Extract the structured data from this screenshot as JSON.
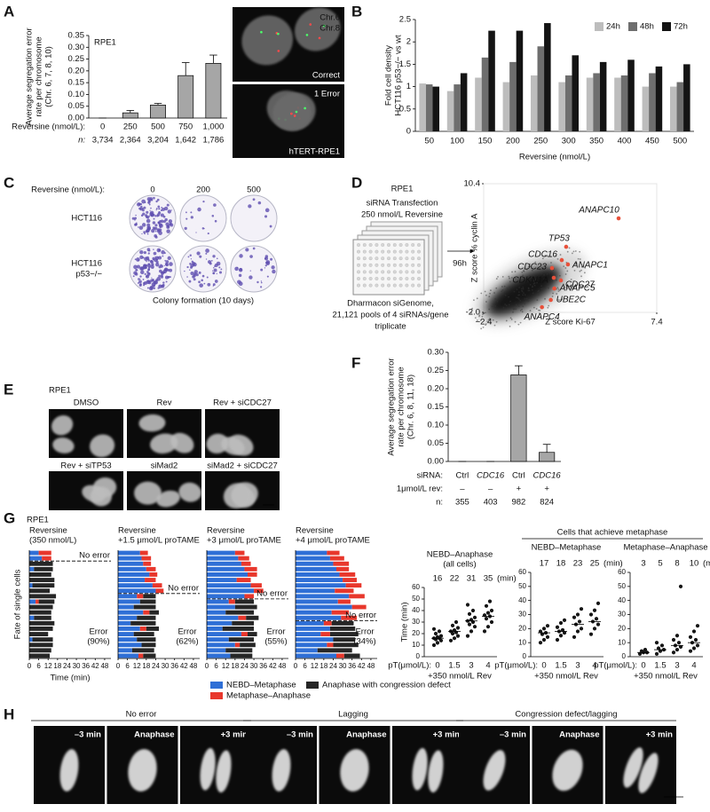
{
  "figure": {
    "panel_labels": [
      "A",
      "B",
      "C",
      "D",
      "E",
      "F",
      "G",
      "H"
    ],
    "fish": {
      "probes": [
        "Chr.6",
        "Chr.8"
      ],
      "correct": "Correct",
      "error": "1 Error",
      "cell_line": "hTERT-RPE1"
    },
    "colony": {
      "x_label": "Reversine (nmol/L):",
      "doses": [
        "0",
        "200",
        "500"
      ],
      "lines": [
        [
          "HCT116"
        ],
        [
          "HCT116",
          "p53−/−"
        ]
      ],
      "caption": "Colony formation (10 days)"
    },
    "screen": {
      "cell_line": "RPE1",
      "treatment": [
        "siRNA Transfection",
        "250 nmol/L Reversine"
      ],
      "time": "96h",
      "library": [
        "Dharmacon siGenome,",
        "21,121 pools of 4 siRNAs/gene",
        "triplicate"
      ]
    },
    "imaging": {
      "cell_line": "RPE1",
      "captions": [
        "DMSO",
        "Rev",
        "Rev + siCDC27",
        "Rev + siTP53",
        "siMad2",
        "siMad2 + siCDC27"
      ]
    },
    "live": {
      "cell_line": "RPE1",
      "metaphase_header": "Cells that achieve metaphase"
    },
    "anaphase": {
      "groups": [
        "No error",
        "Lagging",
        "Congression defect/lagging"
      ],
      "frames": [
        "–3 min",
        "Anaphase",
        "+3 min"
      ]
    }
  },
  "chart_data": [
    {
      "type": "bar",
      "subtitle": "RPE1",
      "y_label": [
        "Average segregation error",
        "rate per chromosome",
        "(Chr. 6, 7, 8, 10)"
      ],
      "x_label": "Reversine (nmol/L):",
      "categories": [
        "0",
        "250",
        "500",
        "750",
        "1,000"
      ],
      "values": [
        0,
        0.022,
        0.055,
        0.18,
        0.232
      ],
      "errors": [
        0,
        0.01,
        0.007,
        0.055,
        0.035
      ],
      "color": "#a6a6a6",
      "ylim": [
        0,
        0.35
      ],
      "yticks": [
        {
          "value": 0,
          "label": "0.00"
        },
        0.05,
        {
          "value": 0.1,
          "label": "0.10"
        },
        0.15,
        {
          "value": 0.2,
          "label": "0.20"
        },
        0.25,
        {
          "value": 0.3,
          "label": "0.30"
        },
        0.35
      ],
      "n_label": "n:",
      "n": [
        "3,734",
        "2,364",
        "3,204",
        "1,642",
        "1,786"
      ]
    },
    {
      "type": "grouped-bar",
      "y_label": [
        "Fold cell density",
        "HCT116 p53−/− vs wt"
      ],
      "x_label": "Reversine (nmol/L)",
      "categories": [
        "50",
        "100",
        "150",
        "200",
        "250",
        "300",
        "350",
        "400",
        "450",
        "500"
      ],
      "series": [
        {
          "name": "24h",
          "color": "#bdbdbd",
          "values": [
            1.07,
            0.9,
            1.2,
            1.1,
            1.25,
            1.1,
            1.2,
            1.2,
            1.0,
            1.0
          ]
        },
        {
          "name": "48h",
          "color": "#6e6e6e",
          "values": [
            1.05,
            1.05,
            1.65,
            1.55,
            1.9,
            1.25,
            1.3,
            1.25,
            1.3,
            1.1
          ]
        },
        {
          "name": "72h",
          "color": "#141414",
          "values": [
            1.0,
            1.3,
            2.25,
            2.25,
            2.42,
            1.7,
            1.55,
            1.6,
            1.45,
            1.5
          ]
        }
      ],
      "ylim": [
        0,
        2.5
      ],
      "yticks": [
        0,
        0.5,
        1,
        1.5,
        2,
        2.5
      ],
      "legend": "top-right"
    },
    {
      "type": "scatter",
      "x_label": "Z score Ki-67",
      "y_label": "Z score % cyclin A",
      "xlim": [
        -2.4,
        7.4
      ],
      "ylim": [
        -2.0,
        10.4
      ],
      "xticks": [
        {
          "value": -2.4,
          "label": "−2.4"
        },
        7.4
      ],
      "yticks": [
        {
          "value": -2.0,
          "label": "-2.0"
        },
        10.4
      ],
      "labels": [
        "ANAPC10",
        "TP53",
        "CDC16",
        "ANAPC1",
        "CDC23",
        "CDKN1A",
        "CDC27",
        "ANAPC5",
        "UBE2C",
        "ANAPC4"
      ],
      "x": [
        5.24,
        2.27,
        2.02,
        2.37,
        1.47,
        1.57,
        1.97,
        1.6,
        1.4,
        0.9
      ],
      "y": [
        7.06,
        4.32,
        3.04,
        2.62,
        2.27,
        1.33,
        1.08,
        0.3,
        -0.8,
        -1.5
      ],
      "color": "#e8503a"
    },
    {
      "type": "bar",
      "y_label": [
        "Average segregation error",
        "rate per chromosome",
        "(Chr. 6, 8, 11, 18)"
      ],
      "values": [
        0,
        0,
        0.238,
        0.025
      ],
      "errors": [
        0,
        0,
        0.025,
        0.022
      ],
      "color": "#a6a6a6",
      "ylim": [
        0,
        0.3
      ],
      "yticks": [
        {
          "value": 0,
          "label": "0.00"
        },
        0.05,
        {
          "value": 0.1,
          "label": "0.10"
        },
        0.15,
        {
          "value": 0.2,
          "label": "0.20"
        },
        0.25,
        {
          "value": 0.3,
          "label": "0.30"
        }
      ],
      "rows": [
        {
          "label": "siRNA:",
          "values": [
            "Ctrl",
            "CDC16",
            "Ctrl",
            "CDC16"
          ]
        },
        {
          "label": "1μmol/L rev:",
          "values": [
            "–",
            "–",
            "+",
            "+"
          ]
        },
        {
          "label": "n:",
          "values": [
            "355",
            "403",
            "982",
            "824"
          ]
        }
      ]
    },
    {
      "type": "timeline",
      "x_label": "Time (min)",
      "y_label": "Fate of single cells",
      "xlim": [
        0,
        52
      ],
      "xticks": [
        0,
        6,
        12,
        18,
        24,
        30,
        36,
        42,
        48
      ],
      "series": [
        {
          "name": "NEBD–Metaphase",
          "color": "#2f6fd6"
        },
        {
          "name": "Metaphase–Anaphase",
          "color": "#e8372c"
        },
        {
          "name": "Anaphase with congression defect",
          "color": "#262626"
        }
      ],
      "panels": [
        {
          "title": [
            "Reversine",
            "(350 nmol/L)"
          ],
          "no_error_label": "No error",
          "error_label": [
            "Error",
            "(90%)"
          ],
          "no_error": [
            [
              6,
              8,
              0
            ],
            [
              8,
              6,
              0
            ]
          ],
          "error": [
            [
              0,
              0,
              15
            ],
            [
              3,
              0,
              12
            ],
            [
              0,
              0,
              14
            ],
            [
              0,
              0,
              16
            ],
            [
              2,
              0,
              14
            ],
            [
              0,
              0,
              13
            ],
            [
              0,
              0,
              17
            ],
            [
              4,
              2,
              10
            ],
            [
              0,
              0,
              15
            ],
            [
              0,
              0,
              14
            ],
            [
              3,
              0,
              11
            ],
            [
              0,
              0,
              16
            ],
            [
              0,
              0,
              15
            ],
            [
              0,
              0,
              12
            ],
            [
              2,
              0,
              13
            ],
            [
              0,
              0,
              15
            ],
            [
              0,
              0,
              14
            ],
            [
              0,
              0,
              13
            ]
          ]
        },
        {
          "title": [
            "Reversine",
            "+1.5 μmol/L proTAME"
          ],
          "no_error_label": "No error",
          "error_label": [
            "Error",
            "(62%)"
          ],
          "no_error": [
            [
              14,
              5,
              0
            ],
            [
              15,
              6,
              0
            ],
            [
              16,
              5,
              0
            ],
            [
              18,
              6,
              0
            ],
            [
              20,
              5,
              0
            ],
            [
              17,
              7,
              0
            ],
            [
              22,
              6,
              0
            ],
            [
              24,
              5,
              0
            ]
          ],
          "error": [
            [
              12,
              4,
              8
            ],
            [
              14,
              0,
              10
            ],
            [
              10,
              0,
              14
            ],
            [
              16,
              4,
              6
            ],
            [
              12,
              0,
              12
            ],
            [
              8,
              0,
              16
            ],
            [
              14,
              4,
              8
            ],
            [
              10,
              0,
              13
            ],
            [
              12,
              0,
              12
            ],
            [
              15,
              0,
              9
            ],
            [
              9,
              0,
              14
            ],
            [
              13,
              3,
              8
            ]
          ]
        },
        {
          "title": [
            "Reversine",
            "+3 μmol/L proTAME"
          ],
          "no_error_label": "No error",
          "error_label": [
            "Error",
            "(55%)"
          ],
          "no_error": [
            [
              18,
              6,
              0
            ],
            [
              20,
              7,
              0
            ],
            [
              22,
              6,
              0
            ],
            [
              24,
              8,
              0
            ],
            [
              26,
              6,
              0
            ],
            [
              19,
              9,
              0
            ],
            [
              28,
              7,
              0
            ],
            [
              30,
              6,
              0
            ],
            [
              24,
              6,
              0
            ]
          ],
          "error": [
            [
              14,
              4,
              12
            ],
            [
              18,
              0,
              14
            ],
            [
              12,
              0,
              18
            ],
            [
              20,
              5,
              8
            ],
            [
              16,
              0,
              14
            ],
            [
              10,
              0,
              20
            ],
            [
              22,
              4,
              6
            ],
            [
              14,
              0,
              16
            ],
            [
              18,
              3,
              10
            ],
            [
              12,
              0,
              17
            ],
            [
              15,
              0,
              14
            ]
          ]
        },
        {
          "title": [
            "Reversine",
            "+4 μmol/L proTAME"
          ],
          "no_error_label": "No error",
          "error_label": [
            "Error",
            "(34%)"
          ],
          "no_error": [
            [
              20,
              8,
              0
            ],
            [
              22,
              9,
              0
            ],
            [
              24,
              10,
              0
            ],
            [
              26,
              8,
              0
            ],
            [
              28,
              10,
              0
            ],
            [
              30,
              9,
              0
            ],
            [
              32,
              10,
              0
            ],
            [
              25,
              12,
              0
            ],
            [
              34,
              10,
              0
            ],
            [
              27,
              8,
              0
            ],
            [
              36,
              9,
              0
            ],
            [
              23,
              11,
              0
            ],
            [
              29,
              10,
              0
            ]
          ],
          "error": [
            [
              18,
              5,
              14
            ],
            [
              22,
              0,
              16
            ],
            [
              16,
              6,
              18
            ],
            [
              24,
              0,
              14
            ],
            [
              20,
              4,
              16
            ],
            [
              14,
              0,
              22
            ],
            [
              26,
              5,
              10
            ]
          ]
        }
      ]
    },
    {
      "type": "strip",
      "title": [
        "NEBD–Anaphase",
        "(all cells)"
      ],
      "y_label": "Time (min)",
      "x_label": "pT(μmol/L):",
      "categories": [
        "0",
        "1.5",
        "3",
        "4"
      ],
      "treatment": "+350 nmol/L Rev",
      "medians": [
        16,
        22,
        31,
        35
      ],
      "median_unit": "(min)",
      "color": "#151515",
      "median_color": "#e8372c",
      "ylim": [
        0,
        60
      ],
      "yticks": [
        0,
        10,
        20,
        30,
        40,
        50,
        60
      ],
      "values": [
        [
          10,
          12,
          14,
          15,
          16,
          16,
          17,
          18,
          20,
          22,
          24
        ],
        [
          14,
          16,
          18,
          20,
          21,
          22,
          23,
          25,
          27,
          30
        ],
        [
          18,
          22,
          26,
          28,
          30,
          31,
          32,
          34,
          37,
          40,
          45
        ],
        [
          22,
          26,
          30,
          33,
          35,
          36,
          38,
          40,
          44,
          48
        ]
      ]
    },
    {
      "type": "strip",
      "title": [
        "NEBD–Metaphase"
      ],
      "x_label": "pT(μmol/L):",
      "categories": [
        "0",
        "1.5",
        "3",
        "4"
      ],
      "treatment": "+350 nmol/L Rev",
      "medians": [
        17,
        18,
        23,
        25
      ],
      "median_unit": "(min)",
      "color": "#151515",
      "median_color": "#e8372c",
      "ylim": [
        0,
        60
      ],
      "yticks": [
        0,
        10,
        20,
        30,
        40,
        50,
        60
      ],
      "values": [
        [
          10,
          12,
          14,
          16,
          17,
          18,
          20,
          22
        ],
        [
          12,
          15,
          17,
          18,
          19,
          21,
          24,
          26
        ],
        [
          14,
          18,
          20,
          23,
          25,
          28,
          30,
          34
        ],
        [
          16,
          20,
          23,
          25,
          27,
          30,
          33,
          38
        ]
      ]
    },
    {
      "type": "strip",
      "title": [
        "Metaphase–Anaphase"
      ],
      "x_label": "pT(μmol/L):",
      "categories": [
        "0",
        "1.5",
        "3",
        "4"
      ],
      "treatment": "+350 nmol/L Rev",
      "medians": [
        3,
        5,
        8,
        10
      ],
      "median_unit": "(min)",
      "color": "#151515",
      "median_color": "#e8372c",
      "ylim": [
        0,
        60
      ],
      "yticks": [
        0,
        10,
        20,
        30,
        40,
        50,
        60
      ],
      "values": [
        [
          2,
          3,
          3,
          4,
          5
        ],
        [
          2,
          4,
          5,
          6,
          8,
          10
        ],
        [
          3,
          5,
          7,
          8,
          10,
          12,
          15,
          50
        ],
        [
          4,
          6,
          8,
          10,
          12,
          14,
          18,
          22
        ]
      ]
    }
  ]
}
